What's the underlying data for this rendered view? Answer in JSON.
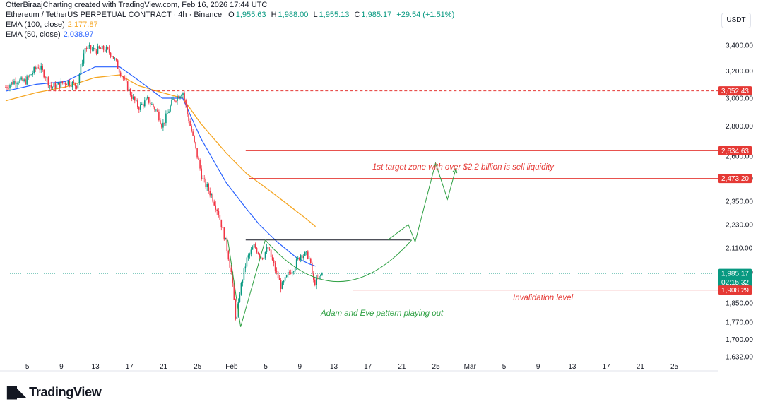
{
  "header": {
    "credit": "OtterBiraajCharting created with TradingView.com, Feb 16, 2026 17:44 UTC",
    "symbol": "Ethereum / TetherUS PERPETUAL CONTRACT · 4h · Binance",
    "ohlc": [
      {
        "key": "O",
        "value": "1,955.63"
      },
      {
        "key": "H",
        "value": "1,988.00"
      },
      {
        "key": "L",
        "value": "1,955.13"
      },
      {
        "key": "C",
        "value": "1,985.17"
      }
    ],
    "change": "+29.54 (+1.51%)",
    "ema100": {
      "label": "EMA (100, close)",
      "value": "2,177.87"
    },
    "ema50": {
      "label": "EMA (50, close)",
      "value": "2,038.97"
    }
  },
  "currency": "USDT",
  "brand": "TradingView",
  "colors": {
    "up": "#089981",
    "down": "#f23645",
    "ema100": "#f5a623",
    "ema50": "#2962ff",
    "level": "#e53935",
    "projection": "#2ea043"
  },
  "chart_data": {
    "type": "candlestick",
    "timeframe": "4h",
    "y_scale": "log",
    "ylim": [
      1632,
      3600
    ],
    "x_ticks": [
      "5",
      "9",
      "13",
      "17",
      "21",
      "25",
      "Feb",
      "5",
      "9",
      "13",
      "17",
      "21",
      "25",
      "Mar",
      "5",
      "9",
      "13",
      "17",
      "21",
      "25"
    ],
    "y_ticks": [
      "3,400.00",
      "3,200.00",
      "3,000.00",
      "2,800.00",
      "2,600.00",
      "2,473.20",
      "2,350.00",
      "2,230.00",
      "2,110.00",
      "1,990.00",
      "1,850.00",
      "1,770.00",
      "1,700.00",
      "1,632.00"
    ],
    "price_path": [
      [
        0,
        3080
      ],
      [
        1.2,
        3130
      ],
      [
        2.3,
        3120
      ],
      [
        3.8,
        3240
      ],
      [
        4.6,
        3170
      ],
      [
        5.3,
        3080
      ],
      [
        6,
        3090
      ],
      [
        7.2,
        3120
      ],
      [
        8.4,
        3090
      ],
      [
        9.3,
        3380
      ],
      [
        10.5,
        3360
      ],
      [
        11.6,
        3370
      ],
      [
        12.5,
        3330
      ],
      [
        13.4,
        3200
      ],
      [
        14.6,
        3040
      ],
      [
        15.6,
        2930
      ],
      [
        16.7,
        2990
      ],
      [
        17.8,
        2900
      ],
      [
        18.4,
        2800
      ],
      [
        19.6,
        2980
      ],
      [
        20.8,
        3050
      ],
      [
        21.4,
        2870
      ],
      [
        22.3,
        2650
      ],
      [
        23.1,
        2470
      ],
      [
        24.2,
        2380
      ],
      [
        25,
        2290
      ],
      [
        25.9,
        2130
      ],
      [
        26.5,
        1990
      ],
      [
        27.1,
        1760
      ],
      [
        27.5,
        1900
      ],
      [
        28.3,
        2050
      ],
      [
        29.2,
        2120
      ],
      [
        30.1,
        2060
      ],
      [
        30.8,
        2110
      ],
      [
        31.7,
        2000
      ],
      [
        32.4,
        1920
      ],
      [
        33.3,
        1990
      ],
      [
        33.8,
        2010
      ],
      [
        34.7,
        2080
      ],
      [
        35.6,
        2070
      ],
      [
        36.2,
        1940
      ],
      [
        36.7,
        1955
      ],
      [
        37.2,
        1985
      ]
    ],
    "ema100": [
      [
        0,
        2980
      ],
      [
        3.6,
        3040
      ],
      [
        7,
        3080
      ],
      [
        10.5,
        3150
      ],
      [
        13.4,
        3170
      ],
      [
        15.6,
        3090
      ],
      [
        18.4,
        3040
      ],
      [
        20.8,
        3000
      ],
      [
        22.9,
        2820
      ],
      [
        25.9,
        2620
      ],
      [
        28.3,
        2500
      ],
      [
        31.2,
        2400
      ],
      [
        33.8,
        2310
      ],
      [
        35.3,
        2260
      ],
      [
        36.4,
        2220
      ]
    ],
    "ema50": [
      [
        0,
        3050
      ],
      [
        3.6,
        3100
      ],
      [
        7,
        3120
      ],
      [
        10.5,
        3230
      ],
      [
        13.4,
        3230
      ],
      [
        15.6,
        3130
      ],
      [
        18.4,
        3000
      ],
      [
        20.8,
        3000
      ],
      [
        22.9,
        2720
      ],
      [
        25.9,
        2450
      ],
      [
        28.3,
        2310
      ],
      [
        29.8,
        2230
      ],
      [
        31.9,
        2140
      ],
      [
        34.2,
        2060
      ],
      [
        35.7,
        2030
      ],
      [
        36.4,
        2020
      ]
    ],
    "levels": [
      {
        "price": 3052.43,
        "label": "3,052.43",
        "style": "dashed"
      },
      {
        "price": 2634.63,
        "label": "2,634.63",
        "style": "solid"
      },
      {
        "price": 2473.2,
        "label": "2,473.20",
        "style": "solid"
      },
      {
        "price": 1985.17,
        "label": "1,985.17",
        "countdown": "02:15:32",
        "style": "dotted"
      },
      {
        "price": 1908.29,
        "label": "1,908.29",
        "style": "solid"
      }
    ],
    "neckline": 2150,
    "adam": [
      [
        26.1,
        2150
      ],
      [
        27.6,
        1750
      ],
      [
        30.5,
        2150
      ]
    ],
    "projection": [
      [
        36.4,
        2150
      ],
      [
        38.8,
        2230
      ],
      [
        39.6,
        2140
      ],
      [
        42,
        2560
      ],
      [
        43.4,
        2360
      ],
      [
        44.4,
        2530
      ]
    ],
    "annotations": {
      "target": "1st target zone with over $2.2 billion is sell liquidity",
      "invalidation": "Invalidation level",
      "pattern": "Adam and Eve pattern playing out"
    }
  }
}
